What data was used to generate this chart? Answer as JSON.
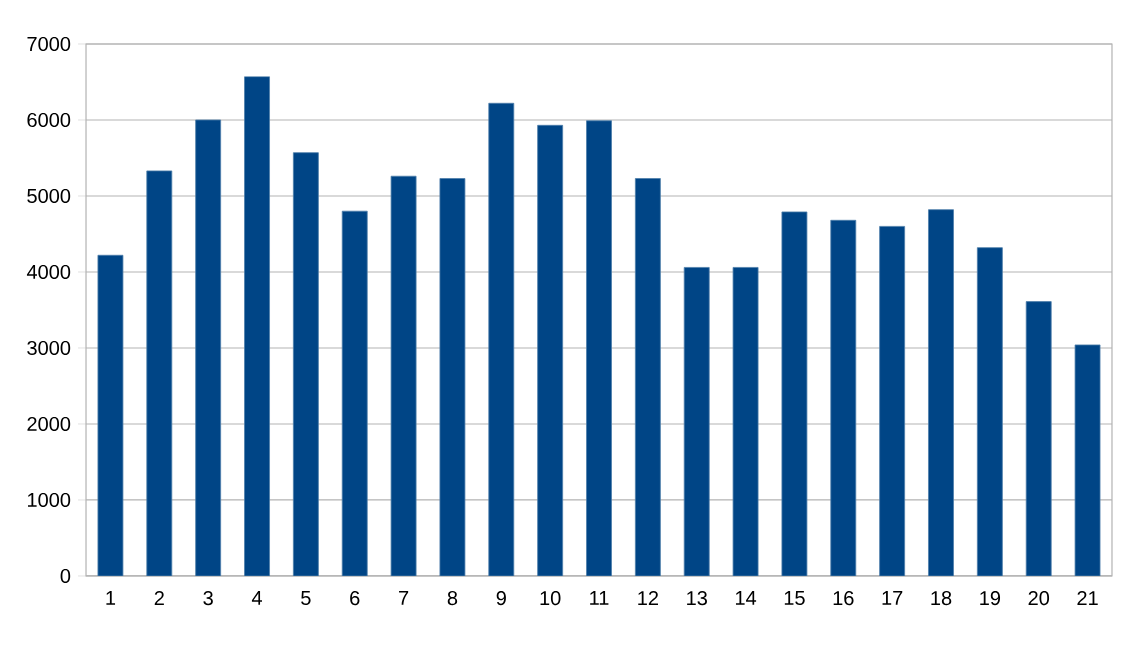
{
  "chart_data": {
    "type": "bar",
    "categories": [
      "1",
      "2",
      "3",
      "4",
      "5",
      "6",
      "7",
      "8",
      "9",
      "10",
      "11",
      "12",
      "13",
      "14",
      "15",
      "16",
      "17",
      "18",
      "19",
      "20",
      "21"
    ],
    "values": [
      4220,
      5330,
      6000,
      6570,
      5570,
      4800,
      5260,
      5230,
      6220,
      5930,
      5990,
      5230,
      4060,
      4060,
      4790,
      4680,
      4600,
      4820,
      4320,
      3610,
      3040
    ],
    "color": "#004586",
    "ylim": [
      0,
      7000
    ],
    "yticks": [
      0,
      1000,
      2000,
      3000,
      4000,
      5000,
      6000,
      7000
    ],
    "grid": "y"
  }
}
